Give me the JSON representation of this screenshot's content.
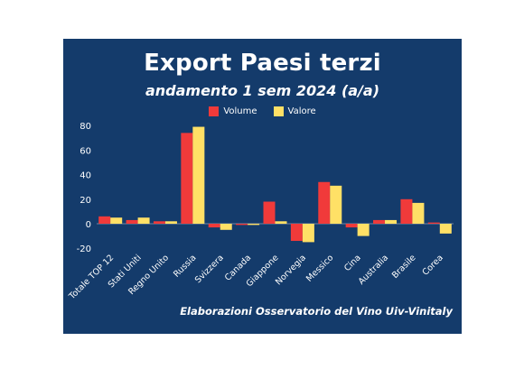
{
  "header": {
    "title": "Export Paesi terzi",
    "subtitle": "andamento 1 sem 2024 (a/a)"
  },
  "footer": {
    "source": "Elaborazioni Osservatorio del Vino Uiv-Vinitaly"
  },
  "colors": {
    "background": "#143b6b",
    "volume": "#f03a3a",
    "valore": "#ffe066",
    "text": "#ffffff"
  },
  "chart_data": {
    "type": "bar",
    "categories": [
      "Totale TOP 12",
      "Stati Uniti",
      "Regno Unito",
      "Russia",
      "Svizzera",
      "Canada",
      "Giappone",
      "Norvegia",
      "Messico",
      "Cina",
      "Australia",
      "Brasile",
      "Corea"
    ],
    "series": [
      {
        "name": "Volume",
        "values": [
          6,
          3,
          2,
          74,
          -3,
          -1,
          18,
          -14,
          34,
          -3,
          3,
          20,
          1
        ]
      },
      {
        "name": "Valore",
        "values": [
          5,
          5,
          2,
          79,
          -5,
          -1,
          2,
          -15,
          31,
          -10,
          3,
          17,
          -8
        ]
      }
    ],
    "yticks": [
      -20,
      0,
      20,
      40,
      60,
      80
    ],
    "ylim": [
      -25,
      85
    ],
    "legend": "top-center",
    "grid": false
  }
}
